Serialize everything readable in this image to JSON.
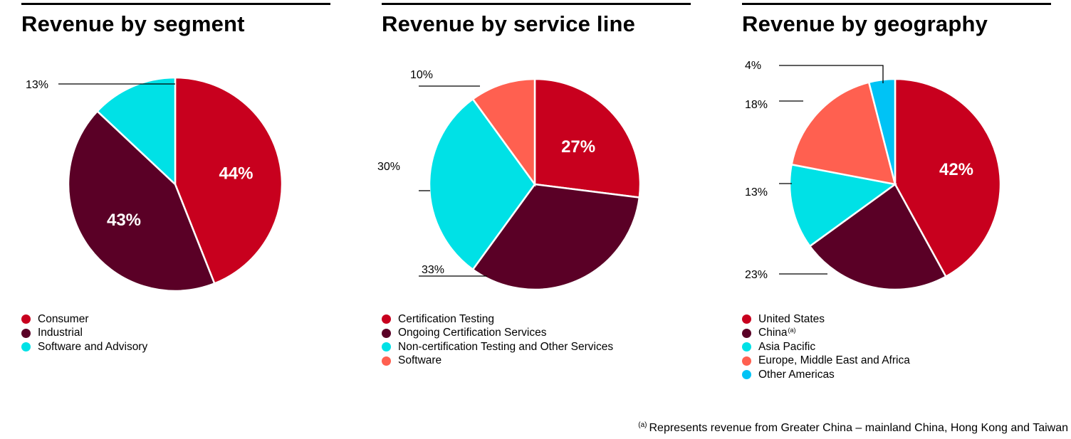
{
  "colors": {
    "red": "#c8001e",
    "maroon": "#5a0026",
    "cyan": "#00e1e6",
    "salmon": "#ff6050",
    "sky": "#00c3f5"
  },
  "chart_data": [
    {
      "type": "pie",
      "title": "Revenue by segment",
      "labels": [
        "Consumer",
        "Industrial",
        "Software and Advisory"
      ],
      "values": [
        44,
        43,
        13
      ],
      "value_labels": [
        "44%",
        "43%",
        "13%"
      ],
      "colors": [
        "#c8001e",
        "#5a0026",
        "#00e1e6"
      ],
      "label_style": [
        "inside",
        "inside",
        "outside"
      ]
    },
    {
      "type": "pie",
      "title": "Revenue by service line",
      "labels": [
        "Certification Testing",
        "Ongoing Certification Services",
        "Non-certification Testing and Other Services",
        "Software"
      ],
      "values": [
        27,
        33,
        30,
        10
      ],
      "value_labels": [
        "27%",
        "33%",
        "30%",
        "10%"
      ],
      "colors": [
        "#c8001e",
        "#5a0026",
        "#00e1e6",
        "#ff6050"
      ],
      "label_style": [
        "inside",
        "outside",
        "outside",
        "outside"
      ]
    },
    {
      "type": "pie",
      "title": "Revenue by geography",
      "labels": [
        "United States",
        "China",
        "Asia Pacific",
        "Europe, Middle East and Africa",
        "Other Americas"
      ],
      "label_notes": [
        "",
        "(a)",
        "",
        "",
        ""
      ],
      "values": [
        42,
        23,
        13,
        18,
        4
      ],
      "value_labels": [
        "42%",
        "23%",
        "13%",
        "18%",
        "4%"
      ],
      "colors": [
        "#c8001e",
        "#5a0026",
        "#00e1e6",
        "#ff6050",
        "#00c3f5"
      ],
      "label_style": [
        "inside",
        "outside",
        "outside",
        "outside",
        "outside"
      ]
    }
  ],
  "footnote": {
    "marker": "(a)",
    "text": "Represents revenue from Greater China – mainland China, Hong Kong and Taiwan"
  }
}
